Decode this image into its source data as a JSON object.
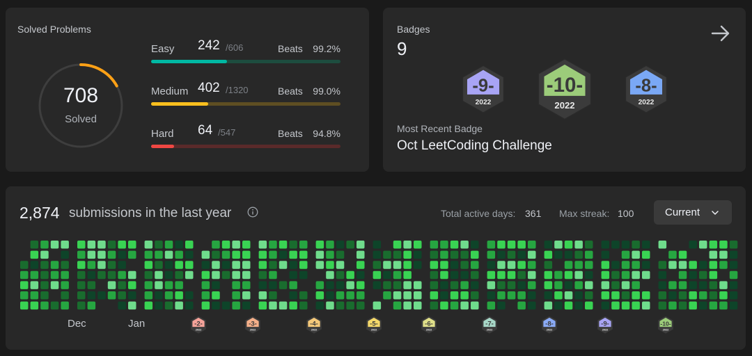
{
  "solved": {
    "title": "Solved Problems",
    "count": "708",
    "label": "Solved",
    "ring_fraction": 0.17,
    "difficulties": [
      {
        "name": "Easy",
        "count": "242",
        "total": "/606",
        "beats_label": "Beats",
        "beats": "99.2%",
        "fraction": 0.4,
        "color": "#00b8a3",
        "track": "#1d4d3f"
      },
      {
        "name": "Medium",
        "count": "402",
        "total": "/1320",
        "beats_label": "Beats",
        "beats": "99.0%",
        "fraction": 0.3,
        "color": "#ffc01e",
        "track": "#5e4e22"
      },
      {
        "name": "Hard",
        "count": "64",
        "total": "/547",
        "beats_label": "Beats",
        "beats": "94.8%",
        "fraction": 0.12,
        "color": "#ef4743",
        "track": "#5a2a2a"
      }
    ],
    "ring_color": "#ffa116"
  },
  "badges": {
    "title": "Badges",
    "count": "9",
    "recent_label": "Most Recent Badge",
    "recent_name": "Oct LeetCoding Challenge",
    "items": [
      {
        "num": "9",
        "year": "2022",
        "color": "#a8a4f5"
      },
      {
        "num": "10",
        "year": "2022",
        "color": "#9ccc7a"
      },
      {
        "num": "8",
        "year": "2022",
        "color": "#7aa8f5"
      }
    ]
  },
  "calendar": {
    "count": "2,874",
    "text": "submissions in the last year",
    "active_label": "Total active days:",
    "active_value": "361",
    "streak_label": "Max streak:",
    "streak_value": "100",
    "dropdown": "Current",
    "months": [
      "Dec",
      "Jan"
    ],
    "mini_badges": [
      {
        "num": "2",
        "year": "2022",
        "color": "#f5a39a"
      },
      {
        "num": "3",
        "year": "2022",
        "color": "#f5b08a"
      },
      {
        "num": "4",
        "year": "2022",
        "color": "#f5c97a"
      },
      {
        "num": "5",
        "year": "2022",
        "color": "#f5d96a"
      },
      {
        "num": "6",
        "year": "2022",
        "color": "#e0e08a"
      },
      {
        "num": "7",
        "year": "2022",
        "color": "#a8d8c8"
      },
      {
        "num": "8",
        "year": "2022",
        "color": "#8aaaf5"
      },
      {
        "num": "9",
        "year": "2022",
        "color": "#a8a4f5"
      },
      {
        "num": "10",
        "year": "2022",
        "color": "#9ccc7a"
      }
    ]
  }
}
